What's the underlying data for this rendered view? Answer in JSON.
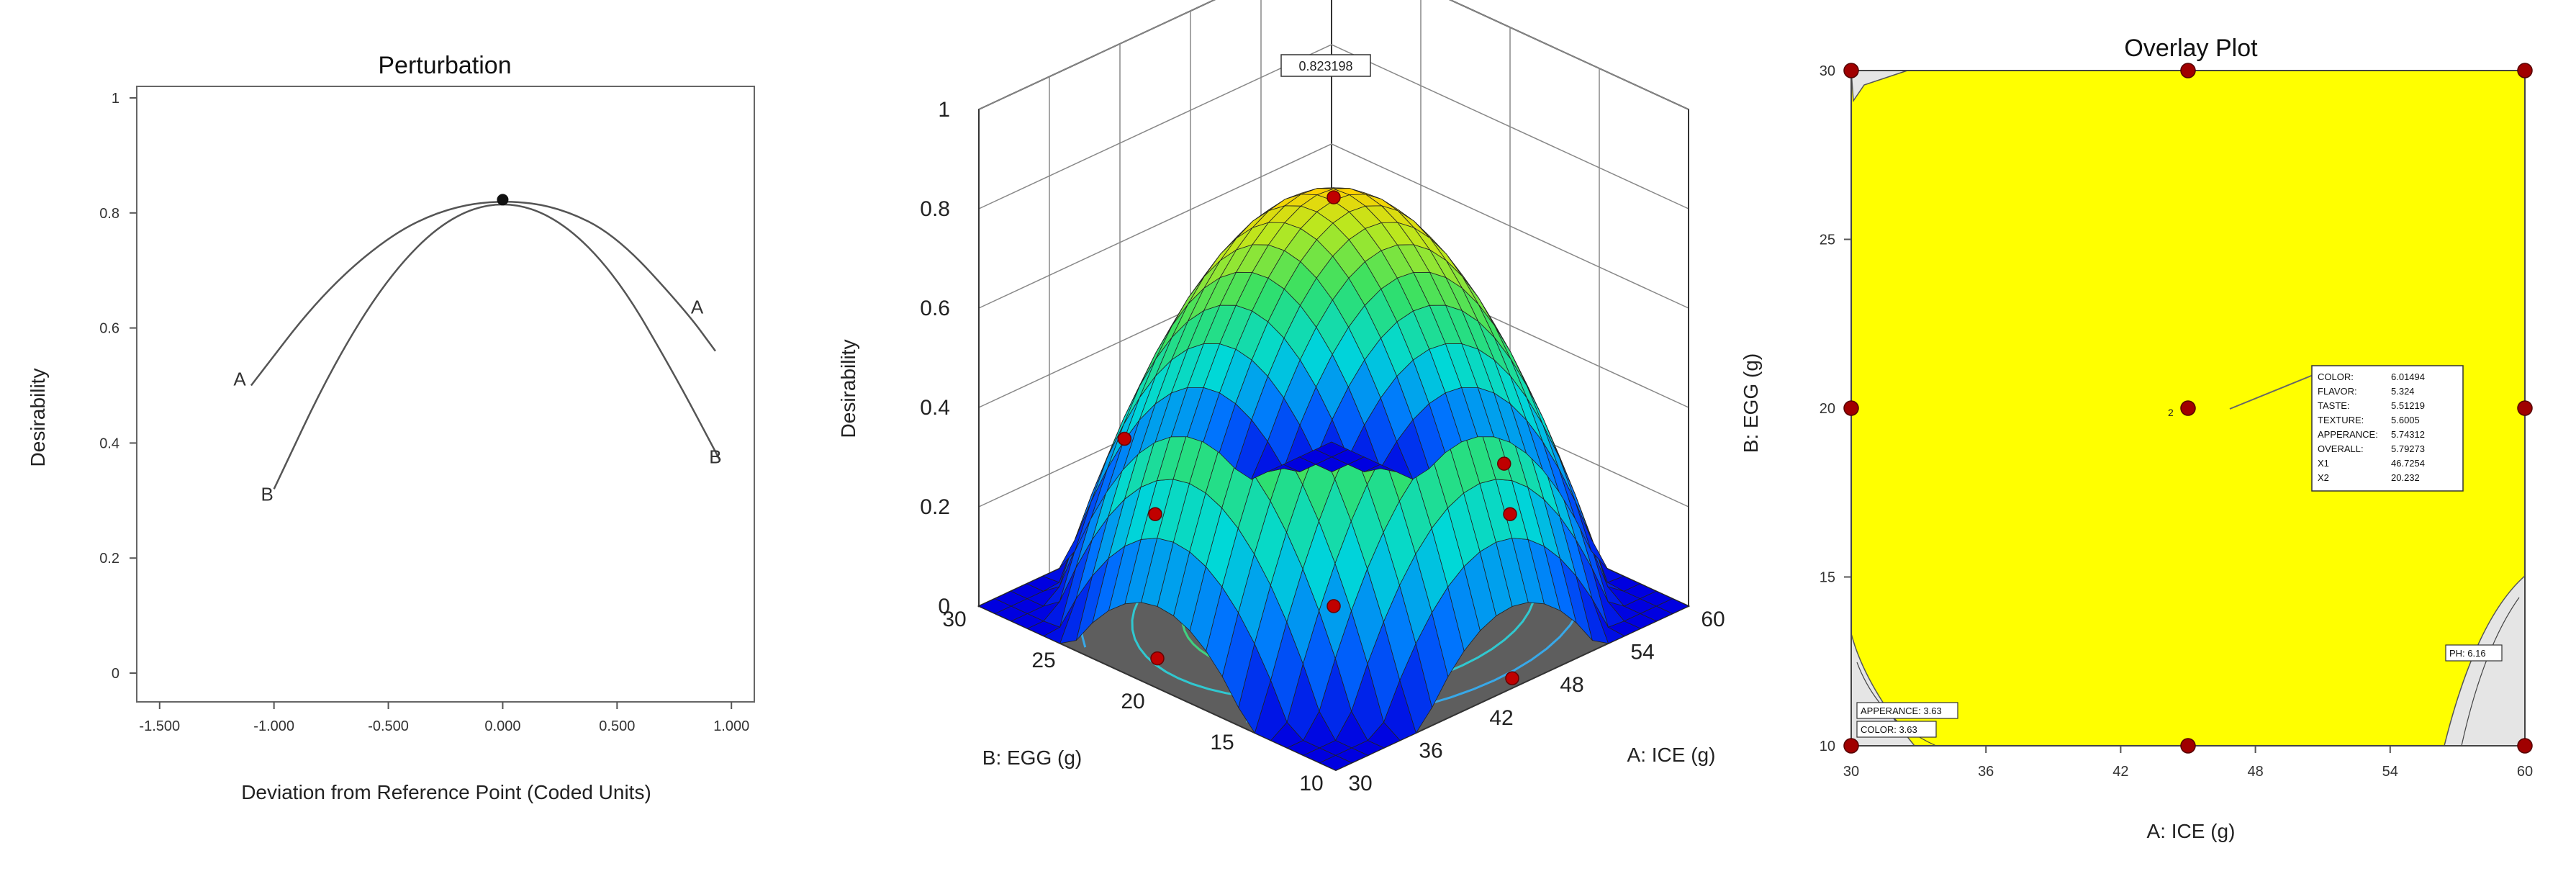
{
  "chart_data": [
    {
      "type": "line",
      "title": "Perturbation",
      "xlabel": "Deviation from Reference Point (Coded Units)",
      "ylabel": "Desirability",
      "xlim": [
        -1.6,
        1.1
      ],
      "ylim": [
        -0.05,
        1.02
      ],
      "x_ticks": [
        "-1.500",
        "-1.000",
        "-0.500",
        "0.000",
        "0.500",
        "1.000"
      ],
      "y_ticks": [
        "0",
        "0.2",
        "0.4",
        "0.6",
        "0.8",
        "1"
      ],
      "reference_point": {
        "x": 0.0,
        "y": 0.823
      },
      "series": [
        {
          "name": "A",
          "x": [
            -1.1,
            -0.8,
            -0.5,
            -0.25,
            0.0,
            0.25,
            0.5,
            0.8,
            0.93
          ],
          "y": [
            0.5,
            0.655,
            0.76,
            0.808,
            0.823,
            0.81,
            0.76,
            0.63,
            0.56
          ]
        },
        {
          "name": "B",
          "x": [
            -1.0,
            -0.75,
            -0.5,
            -0.25,
            0.0,
            0.25,
            0.5,
            0.75,
            0.95
          ],
          "y": [
            0.32,
            0.53,
            0.69,
            0.79,
            0.823,
            0.79,
            0.69,
            0.52,
            0.37
          ]
        }
      ],
      "curve_labels": [
        {
          "name": "A",
          "x": -1.15,
          "y": 0.5
        },
        {
          "name": "A",
          "x": 0.85,
          "y": 0.625
        },
        {
          "name": "B",
          "x": -1.03,
          "y": 0.3
        },
        {
          "name": "B",
          "x": 0.93,
          "y": 0.365
        }
      ]
    },
    {
      "type": "surface3d",
      "zlabel": "Desirability",
      "xlabel": "A: ICE (g)",
      "ylabel": "B: EGG (g)",
      "x_range": [
        30,
        60
      ],
      "y_range": [
        10,
        30
      ],
      "z_range": [
        0,
        1
      ],
      "x_ticks": [
        "30",
        "36",
        "42",
        "48",
        "54",
        "60"
      ],
      "y_ticks": [
        "10",
        "15",
        "20",
        "25",
        "30"
      ],
      "z_ticks": [
        "0",
        "0.2",
        "0.4",
        "0.6",
        "0.8",
        "1"
      ],
      "peak_label": "0.823198",
      "peak": {
        "x": 45,
        "y": 20,
        "z": 0.823
      }
    },
    {
      "type": "overlay",
      "title": "Overlay Plot",
      "xlabel": "A: ICE (g)",
      "ylabel": "B: EGG (g)",
      "xlim": [
        30,
        60
      ],
      "ylim": [
        10,
        30
      ],
      "x_ticks": [
        "30",
        "36",
        "42",
        "48",
        "54",
        "60"
      ],
      "y_ticks": [
        "10",
        "15",
        "20",
        "25",
        "30"
      ],
      "fill_color": "#ffff00",
      "design_points": [
        {
          "x": 30,
          "y": 10
        },
        {
          "x": 45,
          "y": 10
        },
        {
          "x": 60,
          "y": 10
        },
        {
          "x": 30,
          "y": 20
        },
        {
          "x": 45,
          "y": 20
        },
        {
          "x": 60,
          "y": 20
        },
        {
          "x": 30,
          "y": 30
        },
        {
          "x": 45,
          "y": 30
        },
        {
          "x": 60,
          "y": 30
        }
      ],
      "center_label": "2",
      "tooltip": [
        {
          "k": "COLOR:",
          "v": "6.01494"
        },
        {
          "k": "FLAVOR:",
          "v": "5.324"
        },
        {
          "k": "TASTE:",
          "v": "5.51219"
        },
        {
          "k": "TEXTURE:",
          "v": "5.6005"
        },
        {
          "k": "APPERANCE:",
          "v": "5.74312"
        },
        {
          "k": "OVERALL:",
          "v": "5.79273"
        },
        {
          "k": "X1",
          "v": "46.7254"
        },
        {
          "k": "X2",
          "v": "20.232"
        }
      ],
      "constraint_labels": [
        "APPERANCE: 3.63",
        "COLOR: 3.63",
        "PH: 6.16"
      ]
    }
  ]
}
